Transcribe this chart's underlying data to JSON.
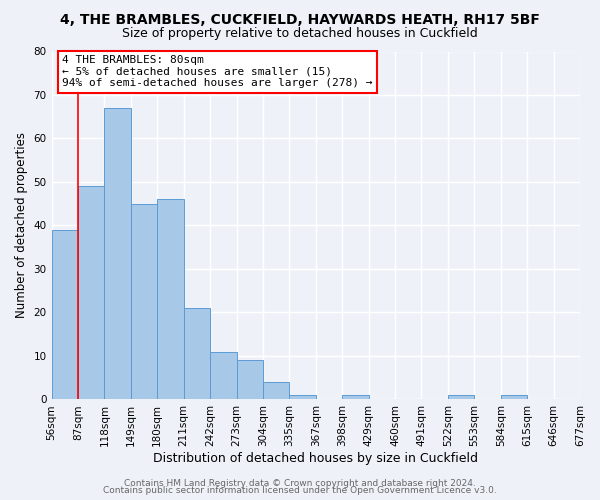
{
  "title": "4, THE BRAMBLES, CUCKFIELD, HAYWARDS HEATH, RH17 5BF",
  "subtitle": "Size of property relative to detached houses in Cuckfield",
  "xlabel": "Distribution of detached houses by size in Cuckfield",
  "ylabel": "Number of detached properties",
  "bar_values": [
    39,
    49,
    67,
    45,
    46,
    21,
    11,
    9,
    4,
    1,
    0,
    1,
    0,
    0,
    0,
    1,
    0,
    1,
    0,
    0
  ],
  "bin_labels": [
    "56sqm",
    "87sqm",
    "118sqm",
    "149sqm",
    "180sqm",
    "211sqm",
    "242sqm",
    "273sqm",
    "304sqm",
    "335sqm",
    "367sqm",
    "398sqm",
    "429sqm",
    "460sqm",
    "491sqm",
    "522sqm",
    "553sqm",
    "584sqm",
    "615sqm",
    "646sqm",
    "677sqm"
  ],
  "bar_color": "#a8c8e8",
  "bar_edge_color": "#5b9bd5",
  "red_line_xidx": 1,
  "ylim": [
    0,
    80
  ],
  "yticks": [
    0,
    10,
    20,
    30,
    40,
    50,
    60,
    70,
    80
  ],
  "annotation_line1": "4 THE BRAMBLES: 80sqm",
  "annotation_line2": "← 5% of detached houses are smaller (15)",
  "annotation_line3": "94% of semi-detached houses are larger (278) →",
  "footer_line1": "Contains HM Land Registry data © Crown copyright and database right 2024.",
  "footer_line2": "Contains public sector information licensed under the Open Government Licence v3.0.",
  "background_color": "#eef2f8",
  "grid_color": "#ffffff",
  "title_fontsize": 10,
  "subtitle_fontsize": 9,
  "xlabel_fontsize": 9,
  "ylabel_fontsize": 8.5,
  "tick_fontsize": 7.5,
  "annotation_fontsize": 8,
  "footer_fontsize": 6.5
}
